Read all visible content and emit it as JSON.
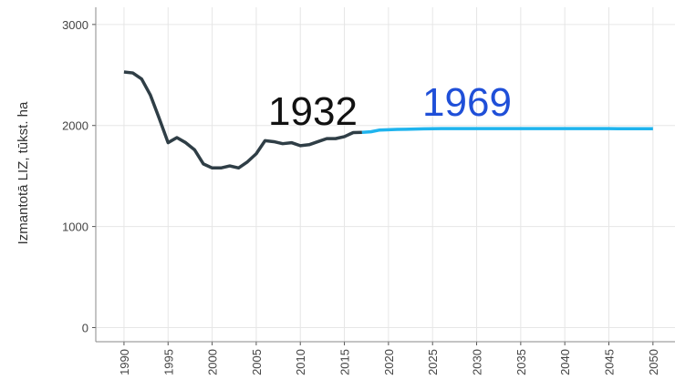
{
  "chart_data": {
    "type": "line",
    "ylabel": "Izmantotā LIZ, tūkst. ha",
    "annotations": [
      "1932",
      "1969"
    ],
    "series": [
      {
        "color": "#2f3e46",
        "x": [
          1990,
          1991,
          1992,
          1993,
          1994,
          1995,
          1996,
          1997,
          1998,
          1999,
          2000,
          2001,
          2002,
          2003,
          2004,
          2005,
          2006,
          2007,
          2008,
          2009,
          2010,
          2011,
          2012,
          2013,
          2014,
          2015,
          2016,
          2017
        ],
        "values": [
          2530,
          2520,
          2460,
          2300,
          2070,
          1830,
          1880,
          1830,
          1760,
          1620,
          1580,
          1580,
          1600,
          1580,
          1640,
          1720,
          1850,
          1840,
          1820,
          1830,
          1800,
          1810,
          1840,
          1870,
          1870,
          1890,
          1930,
          1932
        ]
      },
      {
        "color": "#1fb4ee",
        "x": [
          2017,
          2018,
          2019,
          2020,
          2021,
          2022,
          2023,
          2024,
          2025,
          2026,
          2027,
          2028,
          2029,
          2030,
          2031,
          2032,
          2033,
          2034,
          2035,
          2036,
          2037,
          2038,
          2039,
          2040,
          2041,
          2042,
          2043,
          2044,
          2045,
          2046,
          2047,
          2048,
          2049,
          2050
        ],
        "values": [
          1932,
          1938,
          1955,
          1958,
          1961,
          1963,
          1965,
          1967,
          1968,
          1969,
          1969,
          1969,
          1969,
          1969,
          1969,
          1969,
          1969,
          1969,
          1969,
          1969,
          1969,
          1969,
          1969,
          1969,
          1969,
          1969,
          1969,
          1969,
          1969,
          1968,
          1968,
          1968,
          1968,
          1968
        ]
      }
    ],
    "annotation_colors": [
      "#111111",
      "#1f4fd8"
    ],
    "xlim": [
      1986.8,
      2052.5
    ],
    "xticks": [
      1990,
      1995,
      2000,
      2005,
      2010,
      2015,
      2020,
      2025,
      2030,
      2035,
      2040,
      2045,
      2050
    ],
    "ylim": [
      -140,
      3170
    ],
    "yticks": [
      0,
      1000,
      2000,
      3000
    ],
    "grid": true
  }
}
